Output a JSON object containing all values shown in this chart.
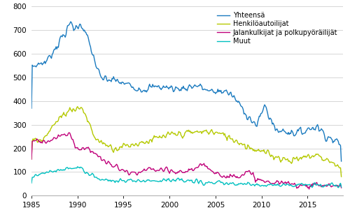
{
  "legend_labels": [
    "Yhteensä",
    "Henkilöautoilijat",
    "Jalankulkijat ja polkupyöräilijät",
    "Muut"
  ],
  "colors": [
    "#1a7abf",
    "#b5c900",
    "#c0007a",
    "#00c0c0"
  ],
  "ylim": [
    0,
    800
  ],
  "yticks": [
    0,
    100,
    200,
    300,
    400,
    500,
    600,
    700,
    800
  ],
  "xlim_start": 1985.0,
  "xlim_end": 2018.85,
  "xticks": [
    1985,
    1990,
    1995,
    2000,
    2005,
    2010,
    2015
  ],
  "linewidth": 1.0,
  "figsize": [
    5.0,
    3.08
  ],
  "dpi": 100,
  "background_color": "#ffffff",
  "grid_color": "#d0d0d0",
  "legend_fontsize": 7.0,
  "tick_fontsize": 7.5
}
